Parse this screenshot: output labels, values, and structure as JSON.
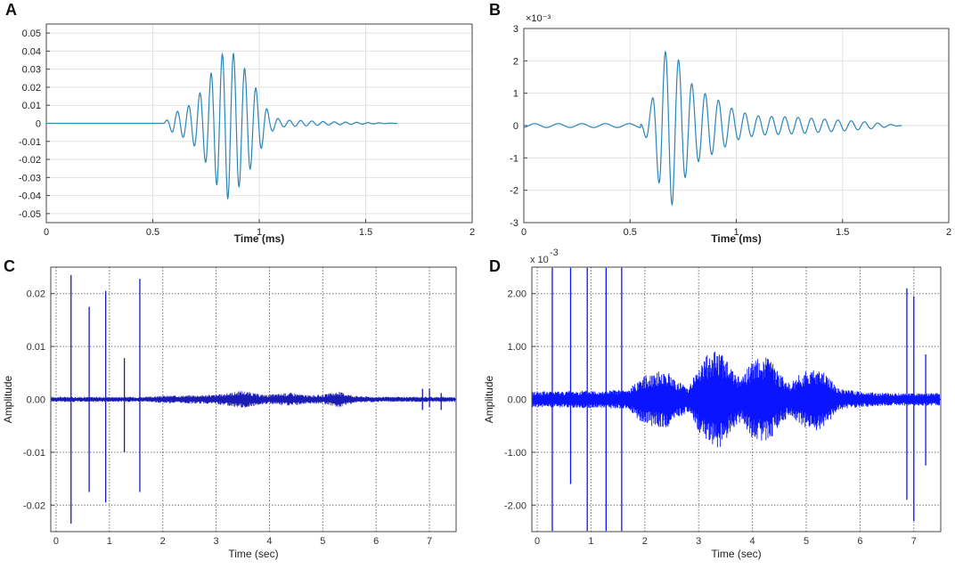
{
  "chart_data": [
    {
      "panel": "A",
      "type": "line",
      "xlabel": "Time (ms)",
      "ylabel": "",
      "xlim": [
        0,
        2
      ],
      "ylim": [
        -0.055,
        0.055
      ],
      "xticks": [
        "0",
        "0.5",
        "1",
        "1.5",
        "2"
      ],
      "yticks": [
        "0.05",
        "0.04",
        "0.03",
        "0.02",
        "0.01",
        "0",
        "-0.01",
        "-0.02",
        "-0.03",
        "-0.04",
        "-0.05"
      ],
      "grid": true,
      "color": "#2a86b8",
      "series": [
        {
          "x": [
            0,
            0.55,
            0.6,
            0.65,
            0.7,
            0.75,
            0.8,
            0.85,
            0.9,
            0.95,
            1.0,
            1.05,
            1.1,
            1.3,
            1.65
          ],
          "envelope": [
            0,
            0,
            0.006,
            0.008,
            0.013,
            0.022,
            0.034,
            0.042,
            0.036,
            0.027,
            0.016,
            0.005,
            0.002,
            0.001,
            0
          ]
        }
      ]
    },
    {
      "panel": "B",
      "type": "line",
      "xlabel": "Time (ms)",
      "ylabel": "",
      "exponent": "×10⁻³",
      "xlim": [
        0,
        2
      ],
      "ylim": [
        -3,
        3
      ],
      "xticks": [
        "0",
        "0.5",
        "1",
        "1.5",
        "2"
      ],
      "yticks": [
        "3",
        "2",
        "1",
        "0",
        "-1",
        "-2",
        "-3"
      ],
      "grid": true,
      "color": "#2a86b8",
      "series": [
        {
          "x": [
            0,
            0.55,
            0.6,
            0.65,
            0.7,
            0.75,
            0.8,
            0.85,
            0.9,
            0.95,
            1.0,
            1.1,
            1.3,
            1.6,
            1.78
          ],
          "envelope": [
            0.06,
            0.06,
            0.7,
            2.2,
            2.45,
            1.7,
            1.2,
            1.0,
            0.85,
            0.65,
            0.45,
            0.3,
            0.25,
            0.12,
            0
          ]
        }
      ]
    },
    {
      "panel": "C",
      "type": "line",
      "xlabel": "Time (sec)",
      "ylabel": "Amplitude",
      "xlim": [
        -0.1,
        7.5
      ],
      "ylim": [
        -0.025,
        0.025
      ],
      "xticks": [
        "0",
        "1",
        "2",
        "3",
        "4",
        "5",
        "6",
        "7"
      ],
      "yticks": [
        "0.02",
        "0.01",
        "0.00",
        "-0.01",
        "-0.02"
      ],
      "grid": "dotted",
      "color": "#1b1bb5",
      "spikes": [
        [
          0.28,
          0.0235,
          -0.0235
        ],
        [
          0.62,
          0.0175,
          -0.0175
        ],
        [
          0.93,
          0.0205,
          -0.0195
        ],
        [
          1.28,
          0.0078,
          -0.01
        ],
        [
          1.57,
          0.0228,
          -0.0175
        ],
        [
          6.87,
          0.002,
          -0.002
        ],
        [
          7.0,
          0.002,
          -0.0015
        ],
        [
          7.22,
          0.0012,
          -0.002
        ]
      ],
      "envelope": {
        "x": [
          0,
          1.7,
          2.0,
          2.5,
          3.0,
          3.2,
          3.5,
          3.8,
          4.0,
          4.4,
          4.7,
          5.0,
          5.3,
          5.6,
          6.0,
          6.5,
          7.5
        ],
        "y": [
          0.0005,
          0.0005,
          0.0007,
          0.0008,
          0.0009,
          0.0012,
          0.0017,
          0.001,
          0.0009,
          0.0013,
          0.0008,
          0.0009,
          0.0015,
          0.0007,
          0.0005,
          0.0005,
          0.0005
        ]
      }
    },
    {
      "panel": "D",
      "type": "line",
      "xlabel": "Time (sec)",
      "ylabel": "Amplitude",
      "exponent_base": "x 10",
      "exponent_power": "-3",
      "xlim": [
        -0.1,
        7.5
      ],
      "ylim": [
        -2.5,
        2.5
      ],
      "xticks": [
        "0",
        "1",
        "2",
        "3",
        "4",
        "5",
        "6",
        "7"
      ],
      "yticks": [
        "2.00",
        "1.00",
        "0.00",
        "-1.00",
        "-2.00"
      ],
      "grid": "dotted",
      "color": "#0b14ff",
      "spikes": [
        [
          0.28,
          2.5,
          -2.5
        ],
        [
          0.62,
          2.5,
          -1.6
        ],
        [
          0.93,
          2.5,
          -2.5
        ],
        [
          1.28,
          2.5,
          -2.5
        ],
        [
          1.57,
          2.5,
          -2.5
        ],
        [
          6.87,
          2.1,
          -1.9
        ],
        [
          7.0,
          1.95,
          -2.3
        ],
        [
          7.22,
          0.85,
          -1.25
        ]
      ],
      "envelope": {
        "x": [
          -0.1,
          1.7,
          1.9,
          2.1,
          2.4,
          2.6,
          2.8,
          3.0,
          3.2,
          3.4,
          3.6,
          3.8,
          4.0,
          4.3,
          4.5,
          4.7,
          4.9,
          5.2,
          5.4,
          5.6,
          6.0,
          6.5,
          7.5
        ],
        "y": [
          0.15,
          0.18,
          0.4,
          0.5,
          0.55,
          0.35,
          0.25,
          0.6,
          0.9,
          0.95,
          0.6,
          0.4,
          0.75,
          0.82,
          0.5,
          0.3,
          0.5,
          0.6,
          0.45,
          0.2,
          0.15,
          0.12,
          0.12
        ]
      }
    }
  ]
}
